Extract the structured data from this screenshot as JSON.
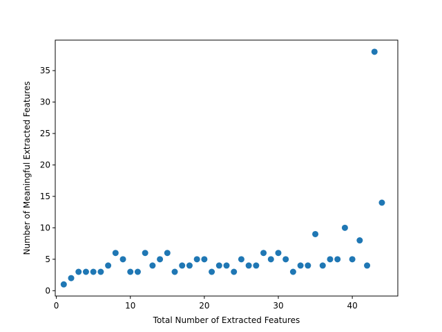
{
  "chart_data": {
    "type": "scatter",
    "title": "",
    "xlabel": "Total Number of Extracted Features",
    "ylabel": "Number of Meaningful Extracted Features",
    "xlim": [
      -0.15,
      46.15
    ],
    "ylim": [
      -0.85,
      39.85
    ],
    "xticks": [
      0,
      10,
      20,
      30,
      40
    ],
    "yticks": [
      0,
      5,
      10,
      15,
      20,
      25,
      30,
      35
    ],
    "grid": false,
    "marker_color": "#1f77b4",
    "x": [
      1,
      2,
      3,
      4,
      5,
      6,
      7,
      8,
      9,
      10,
      11,
      12,
      13,
      14,
      15,
      16,
      17,
      18,
      19,
      20,
      21,
      22,
      23,
      24,
      25,
      26,
      27,
      28,
      29,
      30,
      31,
      32,
      33,
      34,
      35,
      36,
      37,
      38,
      39,
      40,
      41,
      42,
      43,
      44
    ],
    "y": [
      1,
      2,
      3,
      3,
      3,
      3,
      4,
      6,
      5,
      3,
      3,
      6,
      4,
      5,
      6,
      3,
      4,
      4,
      5,
      5,
      3,
      4,
      4,
      3,
      5,
      4,
      4,
      6,
      5,
      6,
      5,
      3,
      4,
      4,
      9,
      4,
      5,
      5,
      10,
      5,
      8,
      4,
      38,
      14
    ]
  }
}
